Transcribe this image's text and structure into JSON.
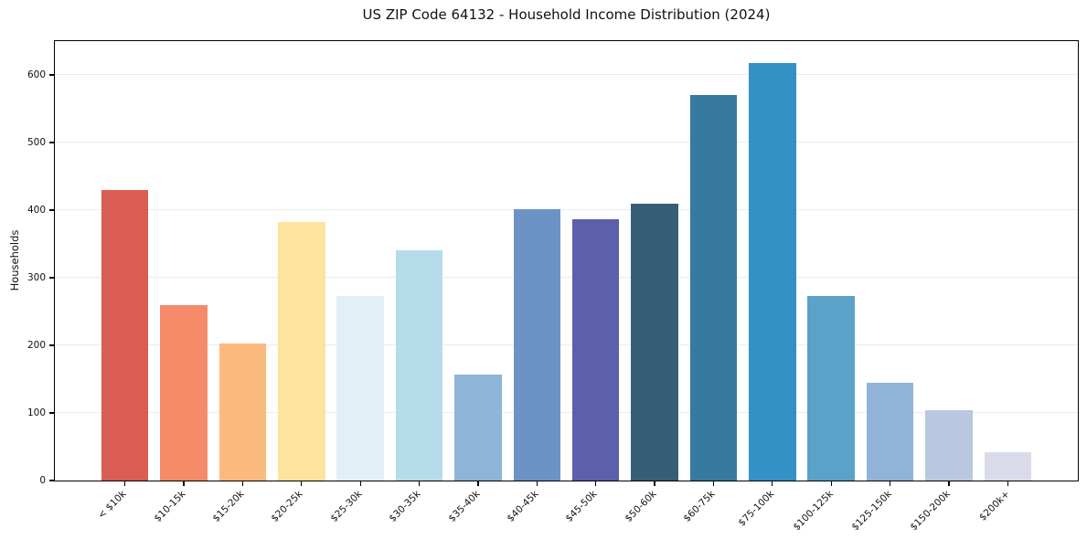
{
  "chart_data": {
    "type": "bar",
    "title": "US ZIP Code 64132 - Household Income Distribution (2024)",
    "xlabel": "",
    "ylabel": "Households",
    "categories": [
      "< $10k",
      "$10-15k",
      "$15-20k",
      "$20-25k",
      "$25-30k",
      "$30-35k",
      "$35-40k",
      "$40-45k",
      "$45-50k",
      "$50-60k",
      "$60-75k",
      "$75-100k",
      "$100-125k",
      "$125-150k",
      "$150-200k",
      "$200k+"
    ],
    "values": [
      430,
      259,
      203,
      382,
      273,
      340,
      157,
      402,
      387,
      409,
      570,
      618,
      273,
      144,
      104,
      42
    ],
    "bar_colors": [
      "#d95d53",
      "#f68b69",
      "#fbba7d",
      "#fde39c",
      "#e2eff6",
      "#b6dcea",
      "#8cb5d8",
      "#6c93c6",
      "#5c5fa9",
      "#355f77",
      "#37799f",
      "#3590c6",
      "#5aa2c8",
      "#90b4d8",
      "#b9c7e0",
      "#dadbe9"
    ],
    "ylim": [
      0,
      650
    ],
    "yticks": [
      0,
      100,
      200,
      300,
      400,
      500,
      600
    ],
    "grid": "horizontal-only",
    "legend": "none",
    "colors": {
      "grid": "#ebebeb",
      "spine": "#000000",
      "text": "#111111",
      "background": "#ffffff"
    }
  }
}
